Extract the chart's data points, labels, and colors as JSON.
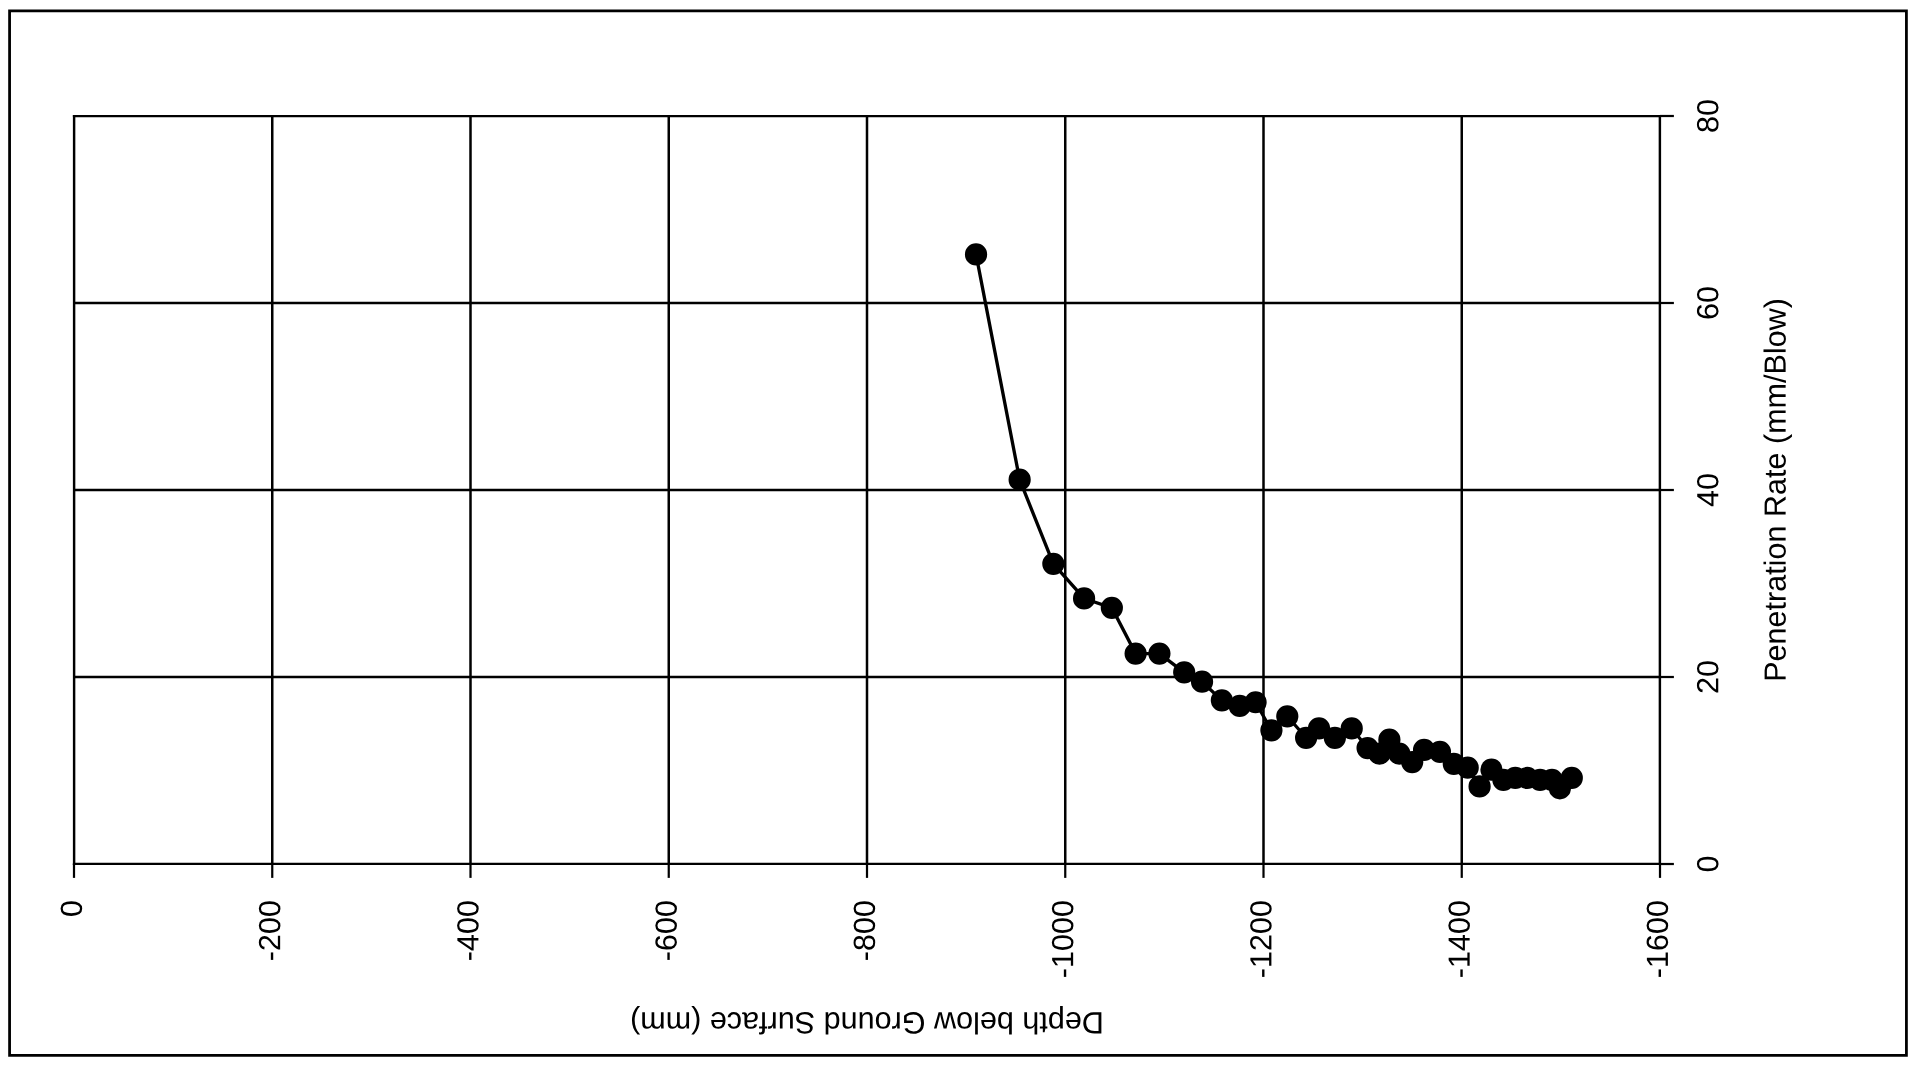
{
  "chart_data": {
    "type": "line",
    "xlabel": "Depth below Ground Surface (mm)",
    "ylabel": "Penetration Rate (mm/Blow)",
    "x": [
      -910,
      -954,
      -988,
      -1019,
      -1047,
      -1071,
      -1095,
      -1120,
      -1138,
      -1158,
      -1176,
      -1192,
      -1208,
      -1224,
      -1243,
      -1256,
      -1272,
      -1289,
      -1305,
      -1317,
      -1327,
      -1337,
      -1350,
      -1362,
      -1378,
      -1392,
      -1406,
      -1418,
      -1430,
      -1442,
      -1454,
      -1466,
      -1479,
      -1491,
      -1499,
      -1511
    ],
    "series": [
      {
        "color": "#000000",
        "values": [
          65.2,
          41.1,
          32.1,
          28.4,
          27.4,
          22.5,
          22.5,
          20.5,
          19.5,
          17.5,
          16.9,
          17.3,
          14.3,
          15.8,
          13.5,
          14.5,
          13.5,
          14.5,
          12.4,
          11.8,
          13.3,
          11.8,
          10.9,
          12.2,
          12.0,
          10.7,
          10.3,
          8.3,
          10.1,
          9.0,
          9.2,
          9.2,
          9.0,
          9.0,
          8.1,
          9.2
        ]
      }
    ],
    "xlim": [
      0,
      -1600
    ],
    "xticks": [
      0,
      -200,
      -400,
      -600,
      -800,
      -1000,
      -1200,
      -1400,
      -1600
    ],
    "ylim": [
      0,
      80
    ],
    "yticks": [
      0,
      20,
      40,
      60,
      80
    ],
    "grid": true,
    "marker": "circle",
    "line_style": "solid",
    "legend": false
  }
}
